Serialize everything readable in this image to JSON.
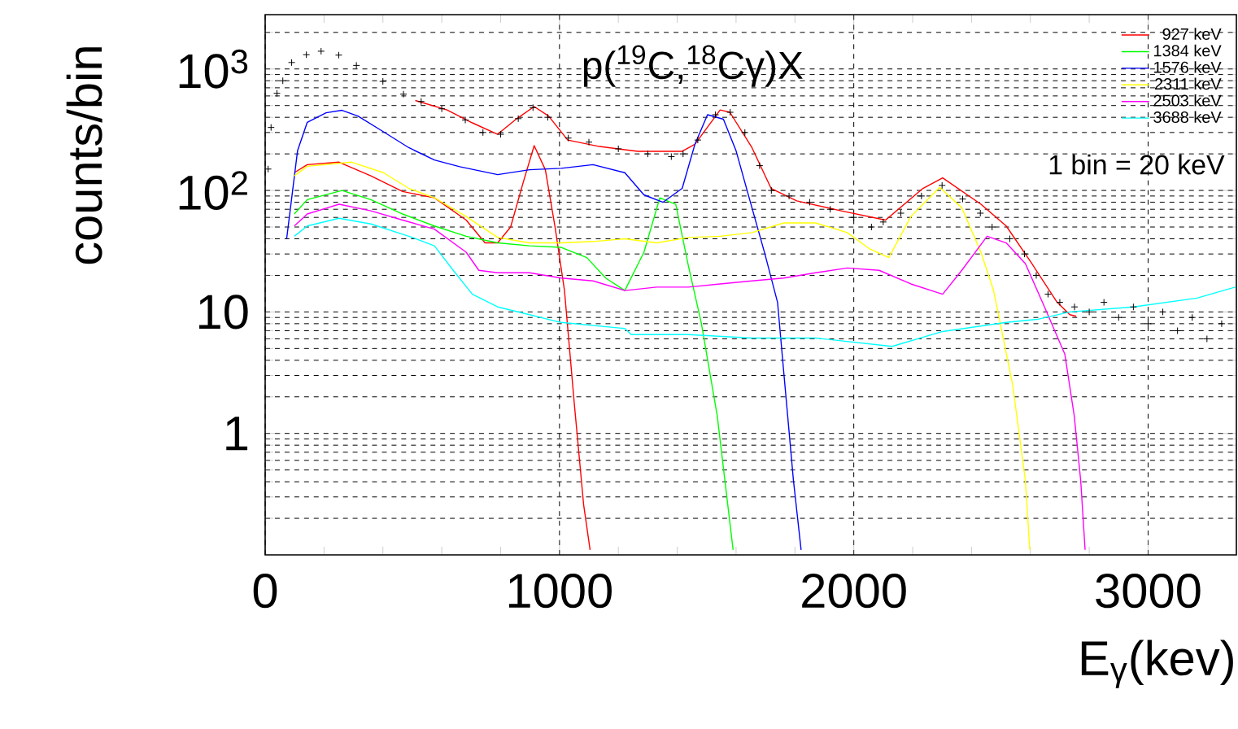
{
  "chart_data": {
    "type": "line",
    "title": "p($^{19}$C,$^{18}$Cγ)X",
    "xlabel": "E$_{γ}$(kev)",
    "ylabel": "counts/bin",
    "annotations": [
      "1 bin = 20 keV"
    ],
    "log": "y",
    "grid": true,
    "legend": "top right",
    "xlim": [
      0,
      3300
    ],
    "ylim": [
      0.1,
      2800
    ],
    "xticks": [
      0,
      1000,
      2000,
      3000
    ],
    "yticks": [
      1,
      10,
      {
        "value": 100,
        "label": "10$^{2}$"
      },
      {
        "value": 1000,
        "label": "10$^{3}$"
      }
    ],
    "series": [
      {
        "color": "#ff0000",
        "x": [
          510,
          618,
          704,
          790,
          855,
          914,
          963,
          1028,
          1136,
          1266,
          1417,
          1460,
          1546,
          1579,
          1654,
          1719,
          1806,
          1957,
          2108,
          2235,
          2302,
          2432,
          2518,
          2605,
          2691,
          2734,
          2756
        ],
        "values": [
          550,
          460,
          360,
          290,
          390,
          490,
          410,
          260,
          230,
          210,
          210,
          240,
          460,
          440,
          225,
          104,
          82,
          68,
          57,
          104,
          127,
          77,
          51,
          25,
          12,
          9.5,
          9.2
        ]
      },
      {
        "name": "927 keV",
        "color": "#ff0000",
        "x": [
          99,
          143,
          251,
          359,
          467,
          575,
          683,
          747,
          790,
          834,
          877,
          914,
          952,
          985,
          1017,
          1050,
          1082,
          1104
        ],
        "values": [
          140,
          163,
          171,
          132,
          98,
          87,
          57,
          37,
          37,
          50,
          117,
          234,
          148,
          50,
          15,
          1.8,
          0.26,
          0.11
        ]
      },
      {
        "name": "1384 keV",
        "color": "#00ff00",
        "x": [
          99,
          143,
          261,
          359,
          467,
          575,
          683,
          790,
          898,
          1006,
          1093,
          1157,
          1222,
          1287,
          1341,
          1395,
          1438,
          1482,
          1536,
          1590
        ],
        "values": [
          64,
          84,
          100,
          84,
          64,
          51,
          42,
          37,
          35,
          34,
          28,
          19,
          15,
          31,
          87,
          77,
          24,
          8.1,
          1.4,
          0.11
        ]
      },
      {
        "name": "1576 keV",
        "color": "#0000ff",
        "x": [
          73,
          110,
          143,
          207,
          261,
          315,
          402,
          488,
          575,
          661,
          790,
          898,
          1006,
          1114,
          1222,
          1287,
          1352,
          1417,
          1460,
          1503,
          1557,
          1600,
          1654,
          1698,
          1741,
          1762,
          1795,
          1821
        ],
        "values": [
          40,
          212,
          364,
          436,
          457,
          410,
          304,
          225,
          178,
          157,
          135,
          148,
          152,
          163,
          140,
          92,
          80,
          104,
          239,
          420,
          386,
          212,
          72,
          30,
          12,
          3.2,
          0.41,
          0.11
        ]
      },
      {
        "name": "2311 keV",
        "color": "#ffff00",
        "x": [
          99,
          143,
          294,
          402,
          488,
          575,
          683,
          790,
          898,
          1006,
          1114,
          1222,
          1330,
          1438,
          1546,
          1654,
          1762,
          1870,
          1978,
          2054,
          2119,
          2194,
          2292,
          2367,
          2432,
          2475,
          2540,
          2583,
          2598
        ],
        "values": [
          132,
          158,
          171,
          140,
          104,
          87,
          61,
          41,
          37,
          37,
          38,
          40,
          37,
          41,
          42,
          45,
          54,
          54,
          45,
          33,
          28,
          61,
          106,
          72,
          31,
          15,
          2.5,
          0.41,
          0.11
        ]
      },
      {
        "name": "2503 keV",
        "color": "#ff00ff",
        "x": [
          99,
          143,
          251,
          359,
          467,
          575,
          683,
          726,
          790,
          898,
          1006,
          1114,
          1222,
          1330,
          1438,
          1546,
          1654,
          1762,
          1870,
          1978,
          2086,
          2194,
          2302,
          2367,
          2453,
          2518,
          2583,
          2648,
          2717,
          2749,
          2771,
          2786
        ],
        "values": [
          51,
          64,
          77,
          68,
          57,
          48,
          31,
          22,
          21,
          21,
          19,
          18,
          15,
          16,
          16,
          17,
          18,
          19,
          21,
          23,
          22,
          17,
          14,
          22,
          42,
          37,
          25,
          11,
          4.5,
          1.4,
          0.41,
          0.11
        ]
      },
      {
        "name": "3688 keV",
        "color": "#00ffff",
        "x": [
          99,
          143,
          251,
          359,
          488,
          575,
          639,
          704,
          790,
          898,
          985,
          1006,
          1222,
          1244,
          1438,
          1654,
          1870,
          2130,
          2302,
          2518,
          2626,
          2734,
          2950,
          3166,
          3296
        ],
        "values": [
          42,
          51,
          59,
          53,
          42,
          35,
          22,
          14,
          11,
          9.5,
          8.4,
          8.2,
          7.3,
          6.5,
          6.5,
          6.1,
          6.1,
          5.2,
          6.9,
          8.2,
          8.7,
          10,
          11,
          13,
          16
        ]
      },
      {
        "type": "scatter",
        "marker": "cross",
        "color": "#000000",
        "x": [
          10,
          20,
          40,
          60,
          90,
          140,
          190,
          250,
          310,
          400,
          470,
          530,
          600,
          680,
          740,
          800,
          860,
          910,
          960,
          1030,
          1100,
          1200,
          1300,
          1380,
          1420,
          1470,
          1530,
          1580,
          1630,
          1680,
          1720,
          1780,
          1850,
          1920,
          2000,
          2060,
          2100,
          2160,
          2230,
          2300,
          2370,
          2430,
          2470,
          2530,
          2580,
          2620,
          2660,
          2700,
          2750,
          2800,
          2850,
          2900,
          2950,
          3000,
          3050,
          3100,
          3150,
          3200,
          3250
        ],
        "values": [
          150,
          330,
          630,
          800,
          1130,
          1310,
          1400,
          1300,
          1070,
          790,
          620,
          540,
          470,
          380,
          300,
          290,
          390,
          480,
          400,
          270,
          250,
          220,
          200,
          190,
          200,
          260,
          420,
          440,
          300,
          160,
          100,
          90,
          80,
          70,
          60,
          50,
          55,
          65,
          90,
          110,
          85,
          65,
          50,
          40,
          30,
          20,
          14,
          12,
          11,
          10,
          12,
          9,
          11,
          8,
          10,
          7,
          9,
          6,
          8
        ]
      }
    ]
  }
}
